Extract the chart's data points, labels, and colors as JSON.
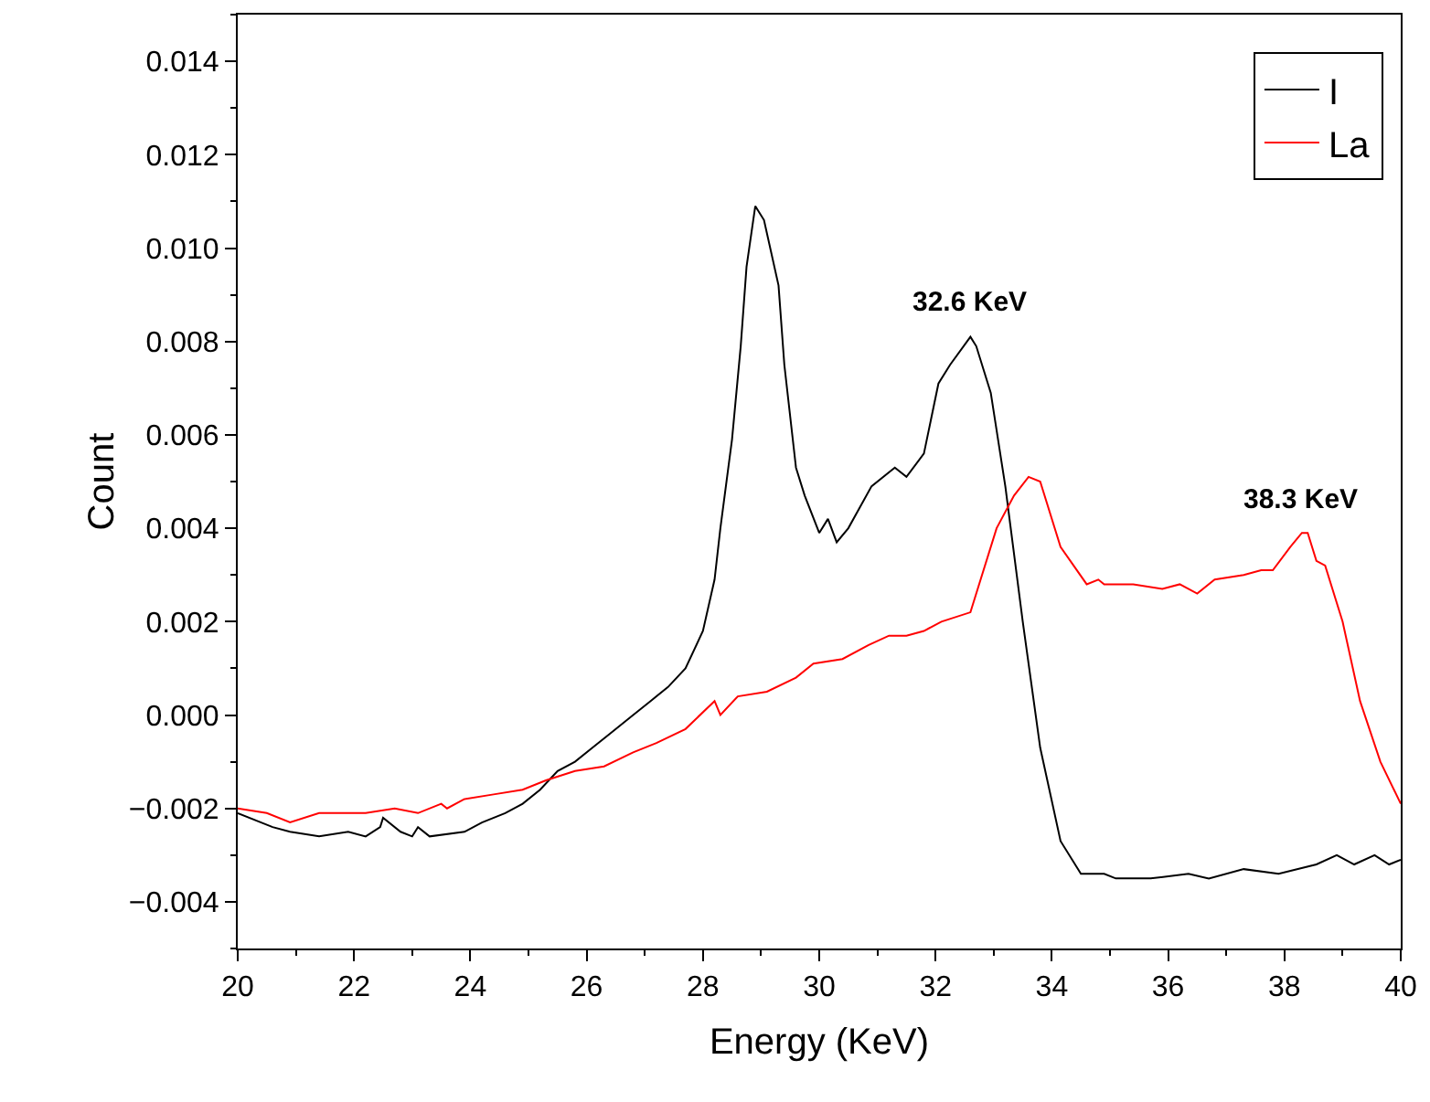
{
  "chart_data": {
    "type": "line",
    "xlabel": "Energy (KeV)",
    "ylabel": "Count",
    "xlim": [
      20,
      40
    ],
    "ylim": [
      -0.005,
      0.015
    ],
    "xticks": [
      20,
      22,
      24,
      26,
      28,
      30,
      32,
      34,
      36,
      38,
      40
    ],
    "yticks": [
      {
        "value": -0.004,
        "label": "−0.004"
      },
      {
        "value": -0.002,
        "label": "−0.002"
      },
      {
        "value": 0,
        "label": "0.000"
      },
      {
        "value": 0.002,
        "label": "0.002"
      },
      {
        "value": 0.004,
        "label": "0.004"
      },
      {
        "value": 0.006,
        "label": "0.006"
      },
      {
        "value": 0.008,
        "label": "0.008"
      },
      {
        "value": 0.01,
        "label": "0.010"
      },
      {
        "value": 0.012,
        "label": "0.012"
      },
      {
        "value": 0.014,
        "label": "0.014"
      }
    ],
    "grid": false,
    "legend": "top right",
    "marker": "none",
    "line_style": "solid",
    "annotations": [
      {
        "text": "32.6 KeV",
        "x": 32.6,
        "y": 0.0081
      },
      {
        "text": "38.3 KeV",
        "x": 38.3,
        "y": 0.0039
      }
    ],
    "series": [
      {
        "name": "I",
        "color": "#000000",
        "x": [
          20,
          20.6,
          20.9,
          21.4,
          21.9,
          22.2,
          22.45,
          22.5,
          22.8,
          23.0,
          23.1,
          23.3,
          23.9,
          24.2,
          24.6,
          24.9,
          25.2,
          25.5,
          25.8,
          26.1,
          26.4,
          26.8,
          27.1,
          27.4,
          27.7,
          28.0,
          28.2,
          28.3,
          28.5,
          28.65,
          28.75,
          28.9,
          29.05,
          29.3,
          29.4,
          29.6,
          29.75,
          30.0,
          30.15,
          30.3,
          30.5,
          30.9,
          31.3,
          31.5,
          31.8,
          32.05,
          32.25,
          32.6,
          32.7,
          32.95,
          33.2,
          33.5,
          33.8,
          34.15,
          34.5,
          34.9,
          35.1,
          35.7,
          36.35,
          36.7,
          37.3,
          37.9,
          38.55,
          38.9,
          39.2,
          39.55,
          39.8,
          40
        ],
        "values": [
          -0.0021,
          -0.0024,
          -0.0025,
          -0.0026,
          -0.0025,
          -0.0026,
          -0.0024,
          -0.0022,
          -0.0025,
          -0.0026,
          -0.0024,
          -0.0026,
          -0.0025,
          -0.0023,
          -0.0021,
          -0.0019,
          -0.0016,
          -0.0012,
          -0.001,
          -0.0007,
          -0.0004,
          0.0,
          0.0003,
          0.0006,
          0.001,
          0.0018,
          0.0029,
          0.004,
          0.0059,
          0.0079,
          0.0096,
          0.0109,
          0.0106,
          0.0092,
          0.0075,
          0.0053,
          0.0047,
          0.0039,
          0.0042,
          0.0037,
          0.004,
          0.0049,
          0.0053,
          0.0051,
          0.0056,
          0.0071,
          0.0075,
          0.0081,
          0.0079,
          0.0069,
          0.0049,
          0.002,
          -0.0007,
          -0.0027,
          -0.0034,
          -0.0034,
          -0.0035,
          -0.0035,
          -0.0034,
          -0.0035,
          -0.0033,
          -0.0034,
          -0.0032,
          -0.003,
          -0.0032,
          -0.003,
          -0.0032,
          -0.0031
        ]
      },
      {
        "name": "La",
        "color": "#ff0000",
        "x": [
          20,
          20.5,
          20.9,
          21.4,
          22.2,
          22.7,
          23.1,
          23.5,
          23.6,
          23.9,
          24.4,
          24.9,
          25.3,
          25.8,
          26.3,
          26.8,
          27.2,
          27.7,
          28.2,
          28.3,
          28.6,
          29.1,
          29.6,
          29.9,
          30.4,
          30.85,
          31.2,
          31.5,
          31.8,
          32.1,
          32.6,
          33.05,
          33.35,
          33.6,
          33.8,
          34.15,
          34.6,
          34.8,
          34.9,
          35.4,
          35.9,
          36.2,
          36.5,
          36.8,
          37.3,
          37.6,
          37.8,
          38.1,
          38.3,
          38.4,
          38.55,
          38.7,
          39.0,
          39.3,
          39.65,
          40
        ],
        "values": [
          -0.002,
          -0.0021,
          -0.0023,
          -0.0021,
          -0.0021,
          -0.002,
          -0.0021,
          -0.0019,
          -0.002,
          -0.0018,
          -0.0017,
          -0.0016,
          -0.0014,
          -0.0012,
          -0.0011,
          -0.0008,
          -0.0006,
          -0.0003,
          0.0003,
          0.0,
          0.0004,
          0.0005,
          0.0008,
          0.0011,
          0.0012,
          0.0015,
          0.0017,
          0.0017,
          0.0018,
          0.002,
          0.0022,
          0.004,
          0.0047,
          0.0051,
          0.005,
          0.0036,
          0.0028,
          0.0029,
          0.0028,
          0.0028,
          0.0027,
          0.0028,
          0.0026,
          0.0029,
          0.003,
          0.0031,
          0.0031,
          0.0036,
          0.0039,
          0.0039,
          0.0033,
          0.0032,
          0.002,
          0.0003,
          -0.001,
          -0.0019
        ]
      }
    ]
  }
}
